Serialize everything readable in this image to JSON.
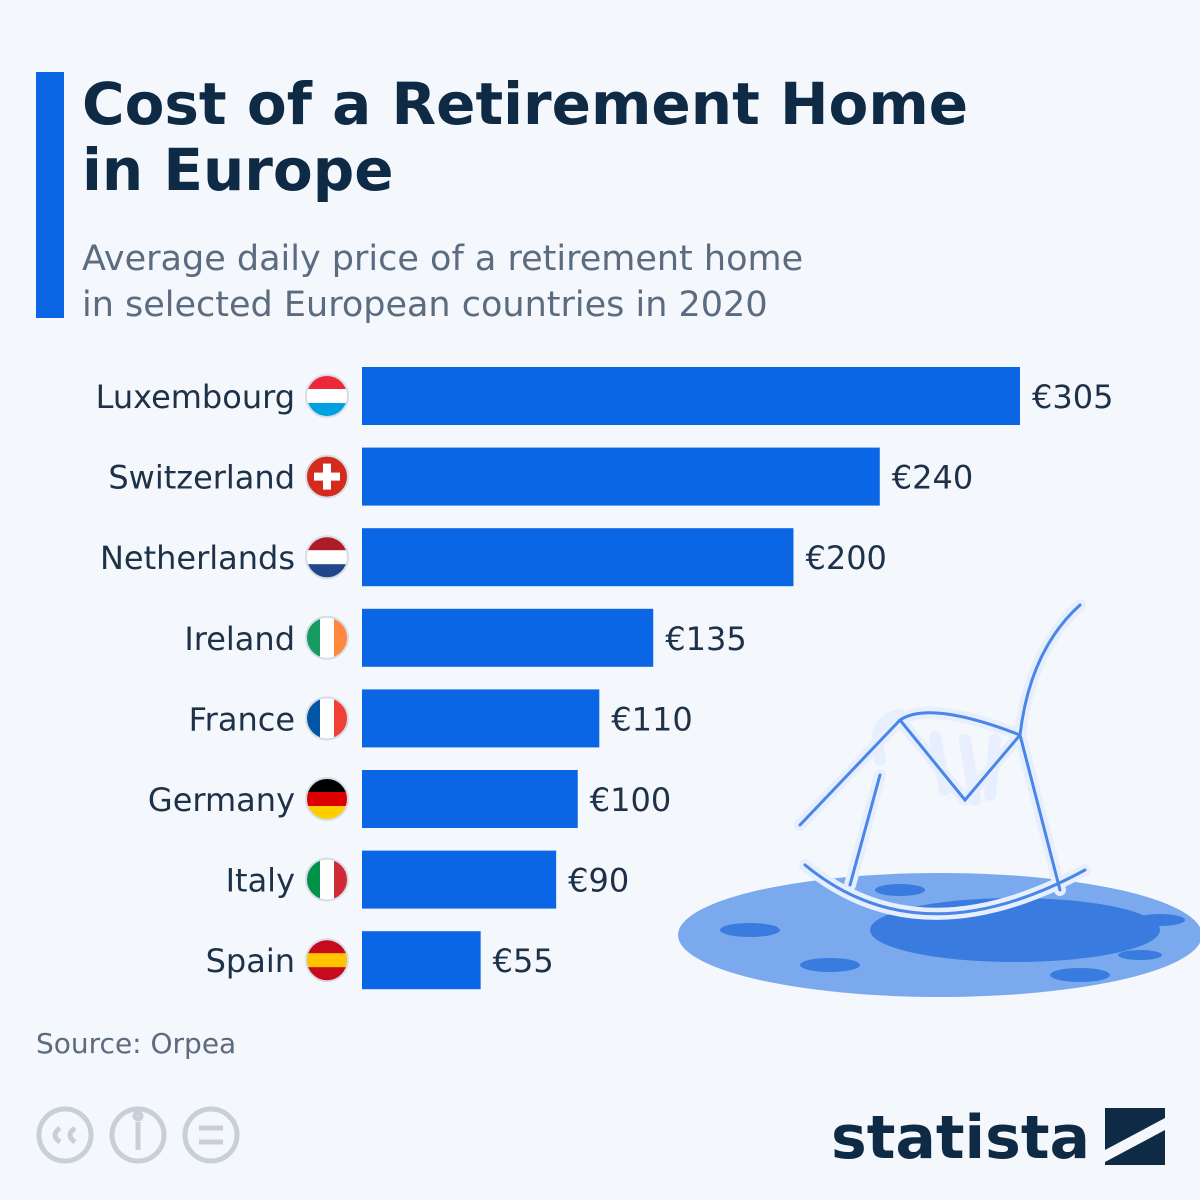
{
  "chart_data": {
    "type": "bar",
    "orientation": "horizontal",
    "title": "Cost of a Retirement Home in Europe",
    "subtitle": "Average daily price of a retirement home in selected European countries in 2020",
    "categories": [
      "Luxembourg",
      "Switzerland",
      "Netherlands",
      "Ireland",
      "France",
      "Germany",
      "Italy",
      "Spain"
    ],
    "values": [
      305,
      240,
      200,
      135,
      110,
      100,
      90,
      55
    ],
    "value_labels": [
      "€305",
      "€240",
      "€200",
      "€135",
      "€110",
      "€100",
      "€90",
      "€55"
    ],
    "color": "#0a66e4",
    "source": "Source: Orpea",
    "brand": "statista"
  }
}
